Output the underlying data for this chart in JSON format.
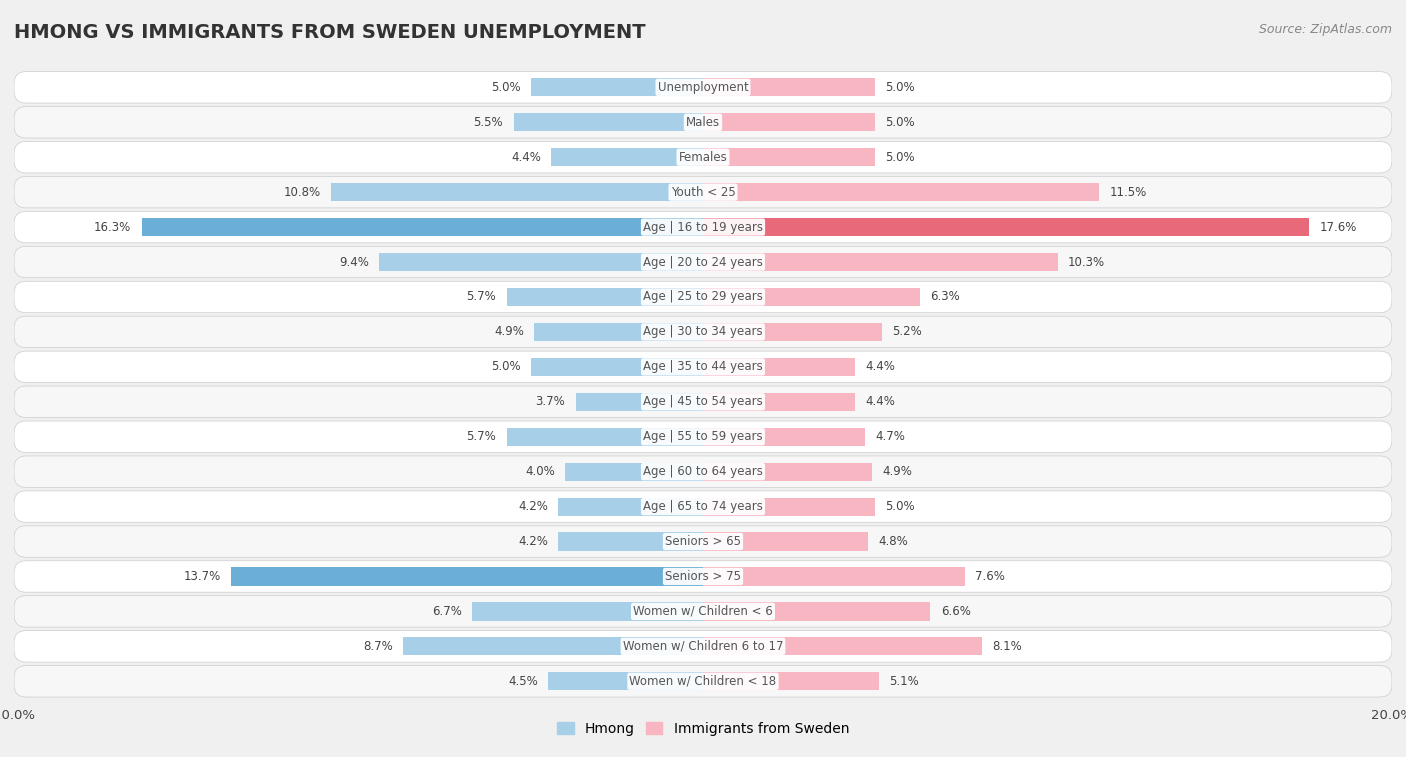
{
  "title": "HMONG VS IMMIGRANTS FROM SWEDEN UNEMPLOYMENT",
  "source": "Source: ZipAtlas.com",
  "categories": [
    "Unemployment",
    "Males",
    "Females",
    "Youth < 25",
    "Age | 16 to 19 years",
    "Age | 20 to 24 years",
    "Age | 25 to 29 years",
    "Age | 30 to 34 years",
    "Age | 35 to 44 years",
    "Age | 45 to 54 years",
    "Age | 55 to 59 years",
    "Age | 60 to 64 years",
    "Age | 65 to 74 years",
    "Seniors > 65",
    "Seniors > 75",
    "Women w/ Children < 6",
    "Women w/ Children 6 to 17",
    "Women w/ Children < 18"
  ],
  "hmong": [
    5.0,
    5.5,
    4.4,
    10.8,
    16.3,
    9.4,
    5.7,
    4.9,
    5.0,
    3.7,
    5.7,
    4.0,
    4.2,
    4.2,
    13.7,
    6.7,
    8.7,
    4.5
  ],
  "sweden": [
    5.0,
    5.0,
    5.0,
    11.5,
    17.6,
    10.3,
    6.3,
    5.2,
    4.4,
    4.4,
    4.7,
    4.9,
    5.0,
    4.8,
    7.6,
    6.6,
    8.1,
    5.1
  ],
  "hmong_color_normal": "#a8cfe8",
  "hmong_color_highlight": "#6baed6",
  "sweden_color_normal": "#f7b6c2",
  "sweden_color_highlight": "#e8697a",
  "highlight_rows_hmong": [
    4,
    14
  ],
  "highlight_rows_sweden": [
    4
  ],
  "bar_height": 0.52,
  "xlim": 20,
  "background_color": "#f0f0f0",
  "row_bg_odd": "#f7f7f7",
  "row_bg_even": "#ffffff",
  "title_fontsize": 14,
  "value_fontsize": 8.5,
  "cat_fontsize": 8.5,
  "legend_fontsize": 10,
  "source_fontsize": 9
}
